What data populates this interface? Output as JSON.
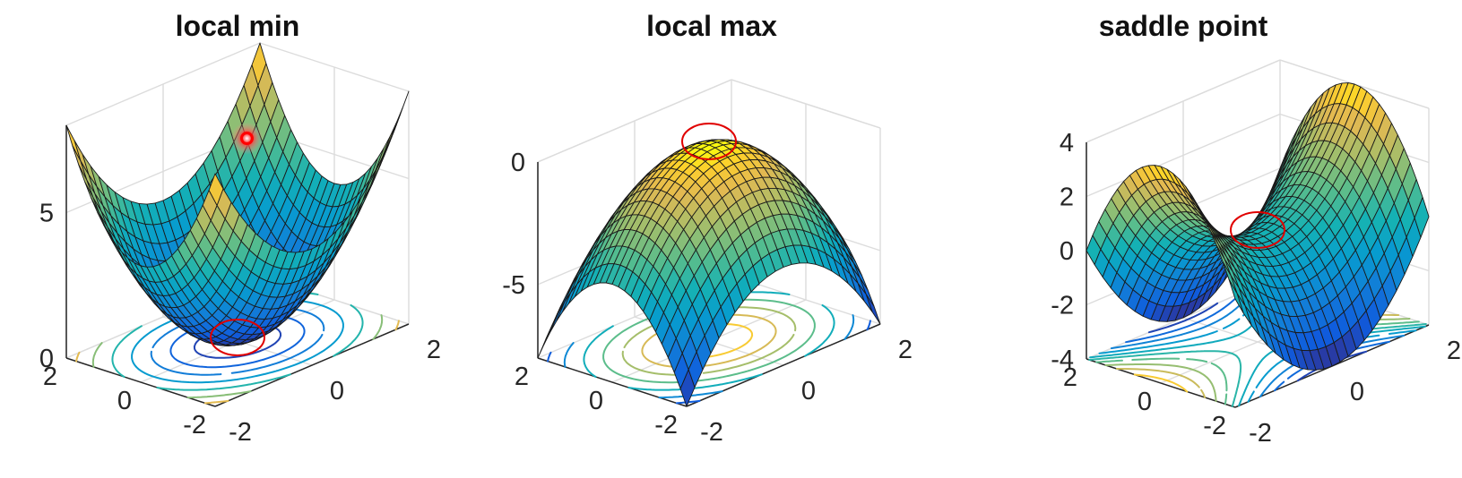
{
  "chart_data": [
    {
      "type": "surface",
      "title": "local min",
      "function": "x^2 + y^2",
      "x_range": [
        -2,
        2
      ],
      "y_range": [
        -2,
        2
      ],
      "zlim": [
        0,
        8
      ],
      "z_ticks": [
        {
          "value": 0,
          "label": "0"
        },
        {
          "value": 5,
          "label": "5"
        }
      ],
      "x_ticks": [
        {
          "value": -2,
          "label": "-2"
        },
        {
          "value": 0,
          "label": "0"
        },
        {
          "value": 2,
          "label": "2"
        }
      ],
      "y_ticks": [
        {
          "value": -2,
          "label": "-2"
        },
        {
          "value": 0,
          "label": "0"
        },
        {
          "value": 2,
          "label": "2"
        }
      ],
      "contours_on_floor": true,
      "highlight": {
        "x": 0,
        "y": 0,
        "z": 0,
        "color": "#e00000"
      },
      "marker": {
        "x": 1.5,
        "y": 1.7,
        "z": 5.2,
        "color": "#ff0000"
      }
    },
    {
      "type": "surface",
      "title": "local max",
      "function": "-(x^2 + y^2)",
      "x_range": [
        -2,
        2
      ],
      "y_range": [
        -2,
        2
      ],
      "zlim": [
        -8,
        0
      ],
      "z_ticks": [
        {
          "value": 0,
          "label": "0"
        },
        {
          "value": -5,
          "label": "-5"
        }
      ],
      "x_ticks": [
        {
          "value": -2,
          "label": "-2"
        },
        {
          "value": 0,
          "label": "0"
        },
        {
          "value": 2,
          "label": "2"
        }
      ],
      "y_ticks": [
        {
          "value": -2,
          "label": "-2"
        },
        {
          "value": 0,
          "label": "0"
        },
        {
          "value": 2,
          "label": "2"
        }
      ],
      "contours_on_floor": true,
      "highlight": {
        "x": 0,
        "y": 0,
        "z": 0,
        "color": "#e00000"
      }
    },
    {
      "type": "surface",
      "title": "saddle point",
      "function": "x^2 - y^2",
      "x_range": [
        -2,
        2
      ],
      "y_range": [
        -2,
        2
      ],
      "zlim": [
        -4,
        4
      ],
      "z_ticks": [
        {
          "value": 4,
          "label": "4"
        },
        {
          "value": 2,
          "label": "2"
        },
        {
          "value": 0,
          "label": "0"
        },
        {
          "value": -2,
          "label": "-2"
        },
        {
          "value": -4,
          "label": "-4"
        }
      ],
      "x_ticks": [
        {
          "value": -2,
          "label": "-2"
        },
        {
          "value": 0,
          "label": "0"
        },
        {
          "value": 2,
          "label": "2"
        }
      ],
      "y_ticks": [
        {
          "value": -2,
          "label": "-2"
        },
        {
          "value": 0,
          "label": "0"
        },
        {
          "value": 2,
          "label": "2"
        }
      ],
      "contours_on_floor": true,
      "highlight": {
        "x": 0,
        "y": 0,
        "z": 0,
        "color": "#e00000"
      }
    }
  ]
}
